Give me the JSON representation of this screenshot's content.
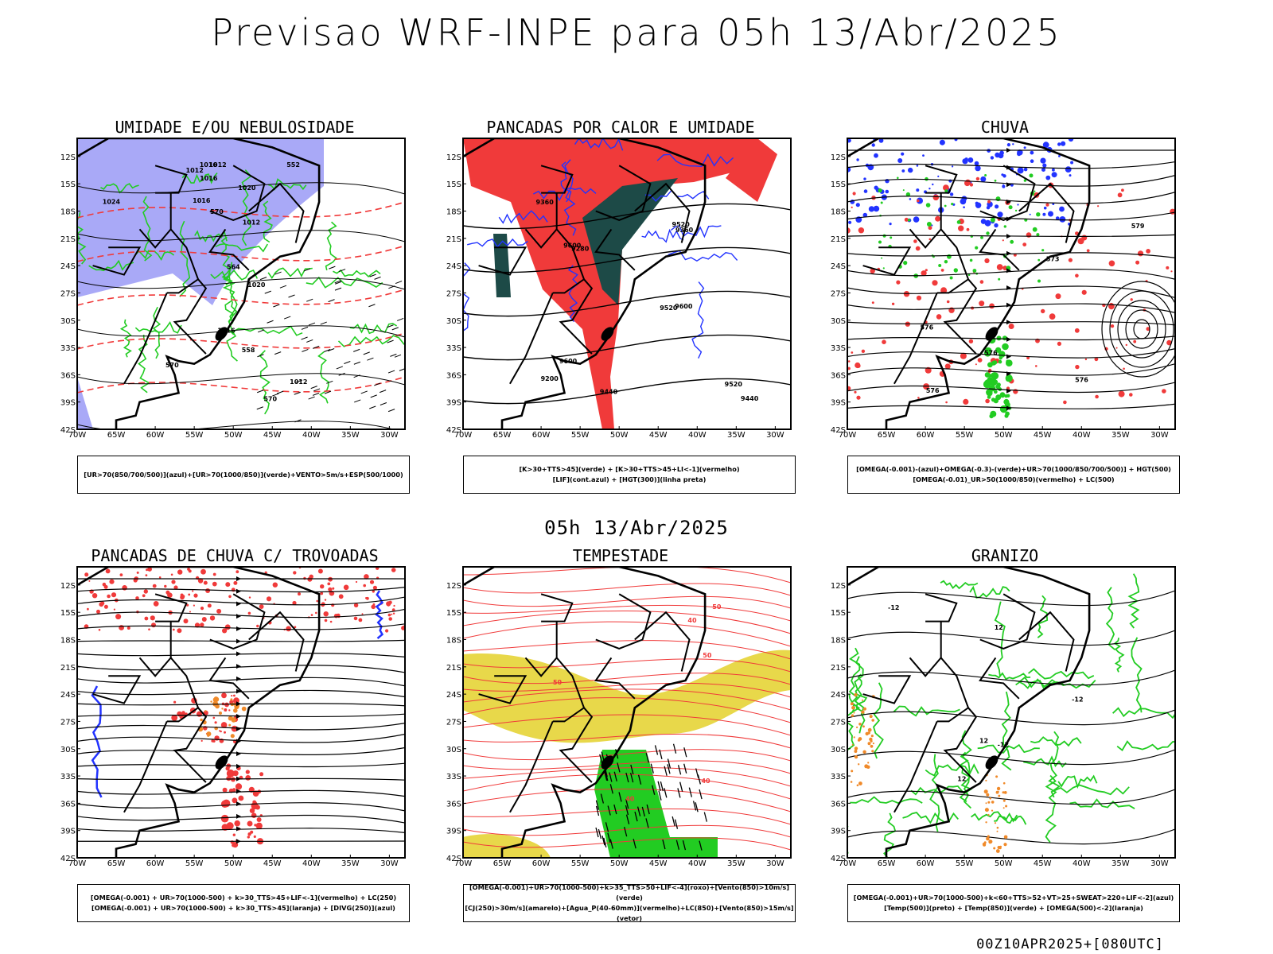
{
  "page": {
    "title": "Previsao WRF-INPE  para 05h 13/Abr/2025",
    "subtitle": "05h 13/Abr/2025",
    "footer": "00Z10APR2025+[080UTC]"
  },
  "colors": {
    "blue_shade": "#a9a9f7",
    "green": "#22cc22",
    "red": "#f03a3a",
    "dark_green": "#1d4a47",
    "blue": "#2233ff",
    "yellow": "#e8d84a",
    "orange": "#f08a2a"
  },
  "chart_data": [
    {
      "type": "heatmap",
      "title": "UMIDADE E/OU NEBULOSIDADE",
      "x_ticks": [
        "70W",
        "65W",
        "60W",
        "55W",
        "50W",
        "45W",
        "40W",
        "35W",
        "30W"
      ],
      "y_ticks": [
        "12S",
        "15S",
        "18S",
        "21S",
        "24S",
        "27S",
        "30S",
        "33S",
        "36S",
        "39S",
        "42S"
      ],
      "xlim": [
        -70,
        -28
      ],
      "ylim": [
        -42,
        -10
      ],
      "legend": [
        "[UR>70(850/700/500)](azul)+[UR>70(1000/850)](verde)+VENTO>5m/s+ESP(500/1000)"
      ],
      "contour_labels": [
        "1012",
        "1012",
        "1012",
        "1012",
        "1016",
        "1016",
        "1016",
        "1016",
        "1020",
        "1020",
        "1024",
        "570",
        "570",
        "570",
        "564",
        "558",
        "552"
      ]
    },
    {
      "type": "heatmap",
      "title": "PANCADAS POR CALOR E UMIDADE",
      "x_ticks": [
        "70W",
        "65W",
        "60W",
        "55W",
        "50W",
        "45W",
        "40W",
        "35W",
        "30W"
      ],
      "y_ticks": [
        "12S",
        "15S",
        "18S",
        "21S",
        "24S",
        "27S",
        "30S",
        "33S",
        "36S",
        "39S",
        "42S"
      ],
      "xlim": [
        -70,
        -28
      ],
      "ylim": [
        -42,
        -10
      ],
      "legend": [
        "[K>30+TTS>45](verde) + [K>30+TTS>45+LI<-1](vermelho)",
        "[LIF](cont.azul) + [HGT(300)](linha preta)"
      ],
      "contour_labels": [
        "9520",
        "9600",
        "9600",
        "9600",
        "9520",
        "9520",
        "9440",
        "9440",
        "9360",
        "9360",
        "9280",
        "9200"
      ]
    },
    {
      "type": "heatmap",
      "title": "CHUVA",
      "x_ticks": [
        "70W",
        "65W",
        "60W",
        "55W",
        "50W",
        "45W",
        "40W",
        "35W",
        "30W"
      ],
      "y_ticks": [
        "12S",
        "15S",
        "18S",
        "21S",
        "24S",
        "27S",
        "30S",
        "33S",
        "36S",
        "39S",
        "42S"
      ],
      "xlim": [
        -70,
        -28
      ],
      "ylim": [
        -42,
        -10
      ],
      "legend": [
        "[OMEGA(-0.001)-(azul)+OMEGA(-0.3)-(verde)+UR>70(1000/850/700/500)] + HGT(500)",
        "[OMEGA(-0.01)_UR>50(1000/850)(vermelho) + LC(500)"
      ],
      "contour_labels": [
        "576",
        "576",
        "576",
        "576",
        "573",
        "579"
      ]
    },
    {
      "type": "heatmap",
      "title": "PANCADAS DE CHUVA C/ TROVOADAS",
      "x_ticks": [
        "70W",
        "65W",
        "60W",
        "55W",
        "50W",
        "45W",
        "40W",
        "35W",
        "30W"
      ],
      "y_ticks": [
        "12S",
        "15S",
        "18S",
        "21S",
        "24S",
        "27S",
        "30S",
        "33S",
        "36S",
        "39S",
        "42S"
      ],
      "xlim": [
        -70,
        -28
      ],
      "ylim": [
        -42,
        -10
      ],
      "legend": [
        "[OMEGA(-0.001) + UR>70(1000-500) + k>30_TTS>45+LIF<-1](vermelho) + LC(250)",
        "[OMEGA(-0.001) + UR>70(1000-500) + k>30_TTS>45](laranja) + [DIVG(250)](azul)"
      ],
      "contour_labels": []
    },
    {
      "type": "heatmap",
      "title": "TEMPESTADE",
      "x_ticks": [
        "70W",
        "65W",
        "60W",
        "55W",
        "50W",
        "45W",
        "40W",
        "35W",
        "30W"
      ],
      "y_ticks": [
        "12S",
        "15S",
        "18S",
        "21S",
        "24S",
        "27S",
        "30S",
        "33S",
        "36S",
        "39S",
        "42S"
      ],
      "xlim": [
        -70,
        -28
      ],
      "ylim": [
        -42,
        -10
      ],
      "legend": [
        "[OMEGA(-0.001)+UR>70(1000-500)+k>35_TTS>50+LIF<-4](roxo)+[Vento(850)>10m/s](verde)",
        "[CJ(250)>30m/s](amarelo)+[Agua_P(40-60mm)](vermelho)+LC(850)+[Vento(850)>15m/s](vetor)"
      ],
      "contour_labels": [
        "50",
        "50",
        "40",
        "40",
        "40",
        "50"
      ]
    },
    {
      "type": "heatmap",
      "title": "GRANIZO",
      "x_ticks": [
        "70W",
        "65W",
        "60W",
        "55W",
        "50W",
        "45W",
        "40W",
        "35W",
        "30W"
      ],
      "y_ticks": [
        "12S",
        "15S",
        "18S",
        "21S",
        "24S",
        "27S",
        "30S",
        "33S",
        "36S",
        "39S",
        "42S"
      ],
      "xlim": [
        -70,
        -28
      ],
      "ylim": [
        -42,
        -10
      ],
      "legend": [
        "[OMEGA(-0.001)+UR>70(1000-500)+k<60+TTS>52+VT>25+SWEAT>220+LIF<-2](azul)",
        "[Temp(500)](preto) + [Temp(850)](verde) + [OMEGA(500)<-2](laranja)"
      ],
      "contour_labels": [
        "-12",
        "-12",
        "-12",
        "12",
        "12",
        "12"
      ]
    }
  ]
}
